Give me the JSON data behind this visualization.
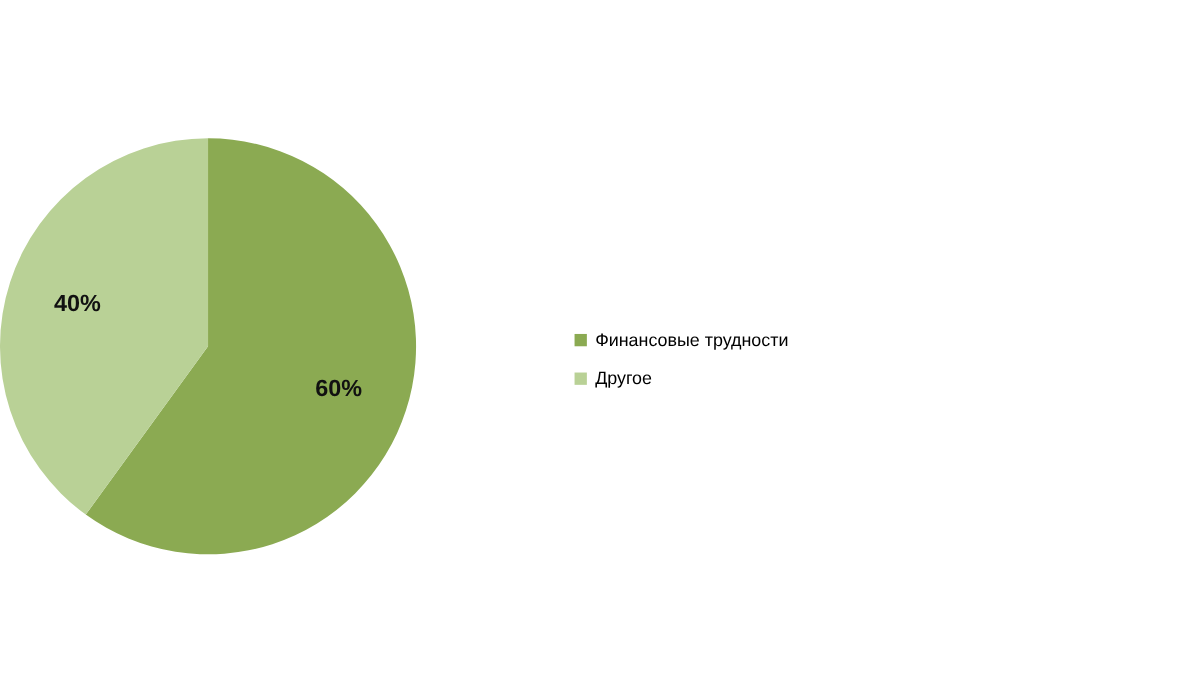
{
  "chart_data": {
    "type": "pie",
    "categories": [
      "Финансовые трудности",
      "Другое"
    ],
    "values": [
      60,
      40
    ],
    "colors": [
      "#8baa52",
      "#b9d196"
    ],
    "value_labels": [
      "60%",
      "40%"
    ],
    "legend": "right"
  }
}
